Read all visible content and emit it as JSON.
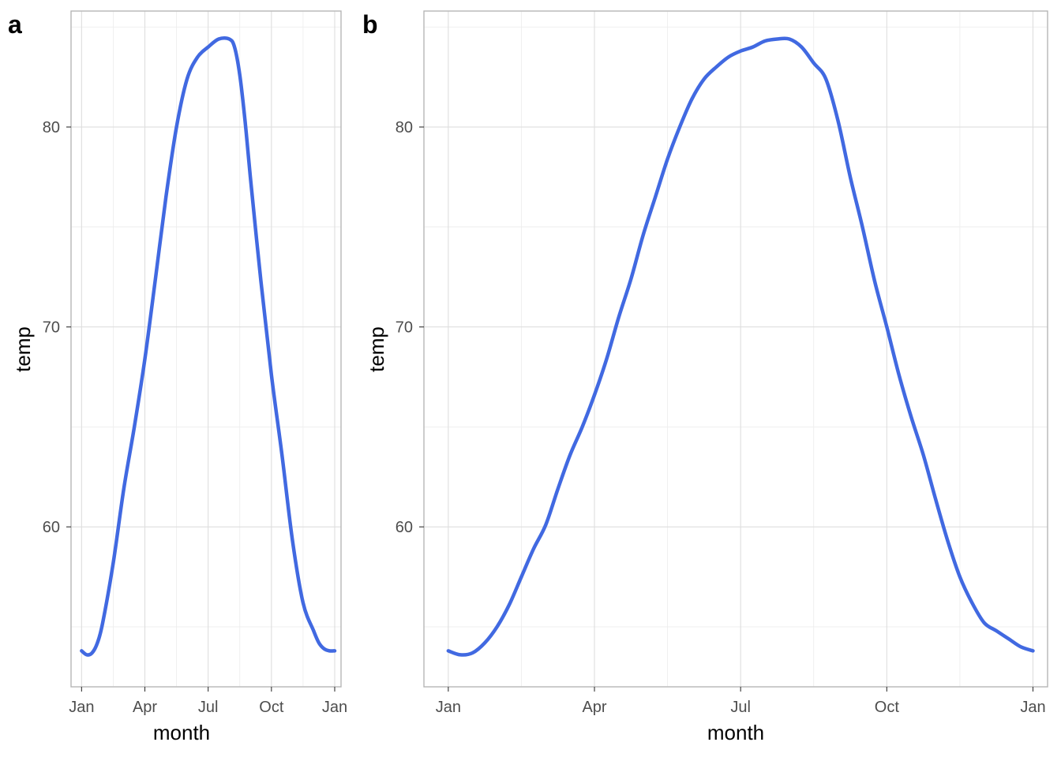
{
  "chart_data": [
    {
      "type": "line",
      "tag": "a",
      "xlabel": "month",
      "ylabel": "temp",
      "x_ticks": [
        "Jan",
        "Apr",
        "Jul",
        "Oct",
        "Jan"
      ],
      "y_ticks": [
        60,
        70,
        80
      ],
      "xlim": [
        -0.5,
        12.3
      ],
      "ylim": [
        52,
        85.8
      ],
      "grid": true,
      "line_color": "#4169E1",
      "series": [
        {
          "x": [
            0,
            0.25,
            0.5,
            0.75,
            1,
            1.5,
            2,
            2.5,
            3,
            3.5,
            4,
            4.5,
            5,
            5.5,
            6,
            6.5,
            7,
            7.25,
            7.5,
            7.75,
            8,
            8.5,
            9,
            9.5,
            10,
            10.5,
            11,
            11.25,
            11.5,
            11.75,
            12
          ],
          "values": [
            53.8,
            53.6,
            53.7,
            54.2,
            55.2,
            58.2,
            61.9,
            65.0,
            68.4,
            72.4,
            76.5,
            80.0,
            82.4,
            83.5,
            84.0,
            84.4,
            84.4,
            84.0,
            82.6,
            80.3,
            77.5,
            72.3,
            67.6,
            63.6,
            59.3,
            56.2,
            54.8,
            54.2,
            53.9,
            53.8,
            53.8
          ]
        }
      ]
    },
    {
      "type": "line",
      "tag": "b",
      "xlabel": "month",
      "ylabel": "temp",
      "x_ticks": [
        "Jan",
        "Apr",
        "Jul",
        "Oct",
        "Jan"
      ],
      "y_ticks": [
        60,
        70,
        80
      ],
      "xlim": [
        -0.5,
        12.3
      ],
      "ylim": [
        52,
        85.8
      ],
      "grid": true,
      "line_color": "#4169E1",
      "series": [
        {
          "x": [
            0,
            0.25,
            0.5,
            0.75,
            1,
            1.25,
            1.5,
            1.75,
            2,
            2.25,
            2.5,
            2.75,
            3,
            3.25,
            3.5,
            3.75,
            4,
            4.25,
            4.5,
            4.75,
            5,
            5.25,
            5.5,
            5.75,
            6,
            6.25,
            6.5,
            6.75,
            7,
            7.25,
            7.5,
            7.75,
            8,
            8.25,
            8.5,
            8.75,
            9,
            9.25,
            9.5,
            9.75,
            10,
            10.25,
            10.5,
            10.75,
            11,
            11.25,
            11.5,
            11.75,
            12
          ],
          "values": [
            53.8,
            53.6,
            53.7,
            54.2,
            55.0,
            56.1,
            57.5,
            58.9,
            60.1,
            61.9,
            63.6,
            65.0,
            66.6,
            68.4,
            70.5,
            72.4,
            74.6,
            76.5,
            78.4,
            80.0,
            81.4,
            82.4,
            83.0,
            83.5,
            83.8,
            84.0,
            84.3,
            84.4,
            84.4,
            84.0,
            83.2,
            82.4,
            80.3,
            77.5,
            75.0,
            72.3,
            70.0,
            67.6,
            65.5,
            63.6,
            61.4,
            59.3,
            57.5,
            56.2,
            55.2,
            54.8,
            54.4,
            54.0,
            53.8
          ]
        }
      ]
    }
  ]
}
